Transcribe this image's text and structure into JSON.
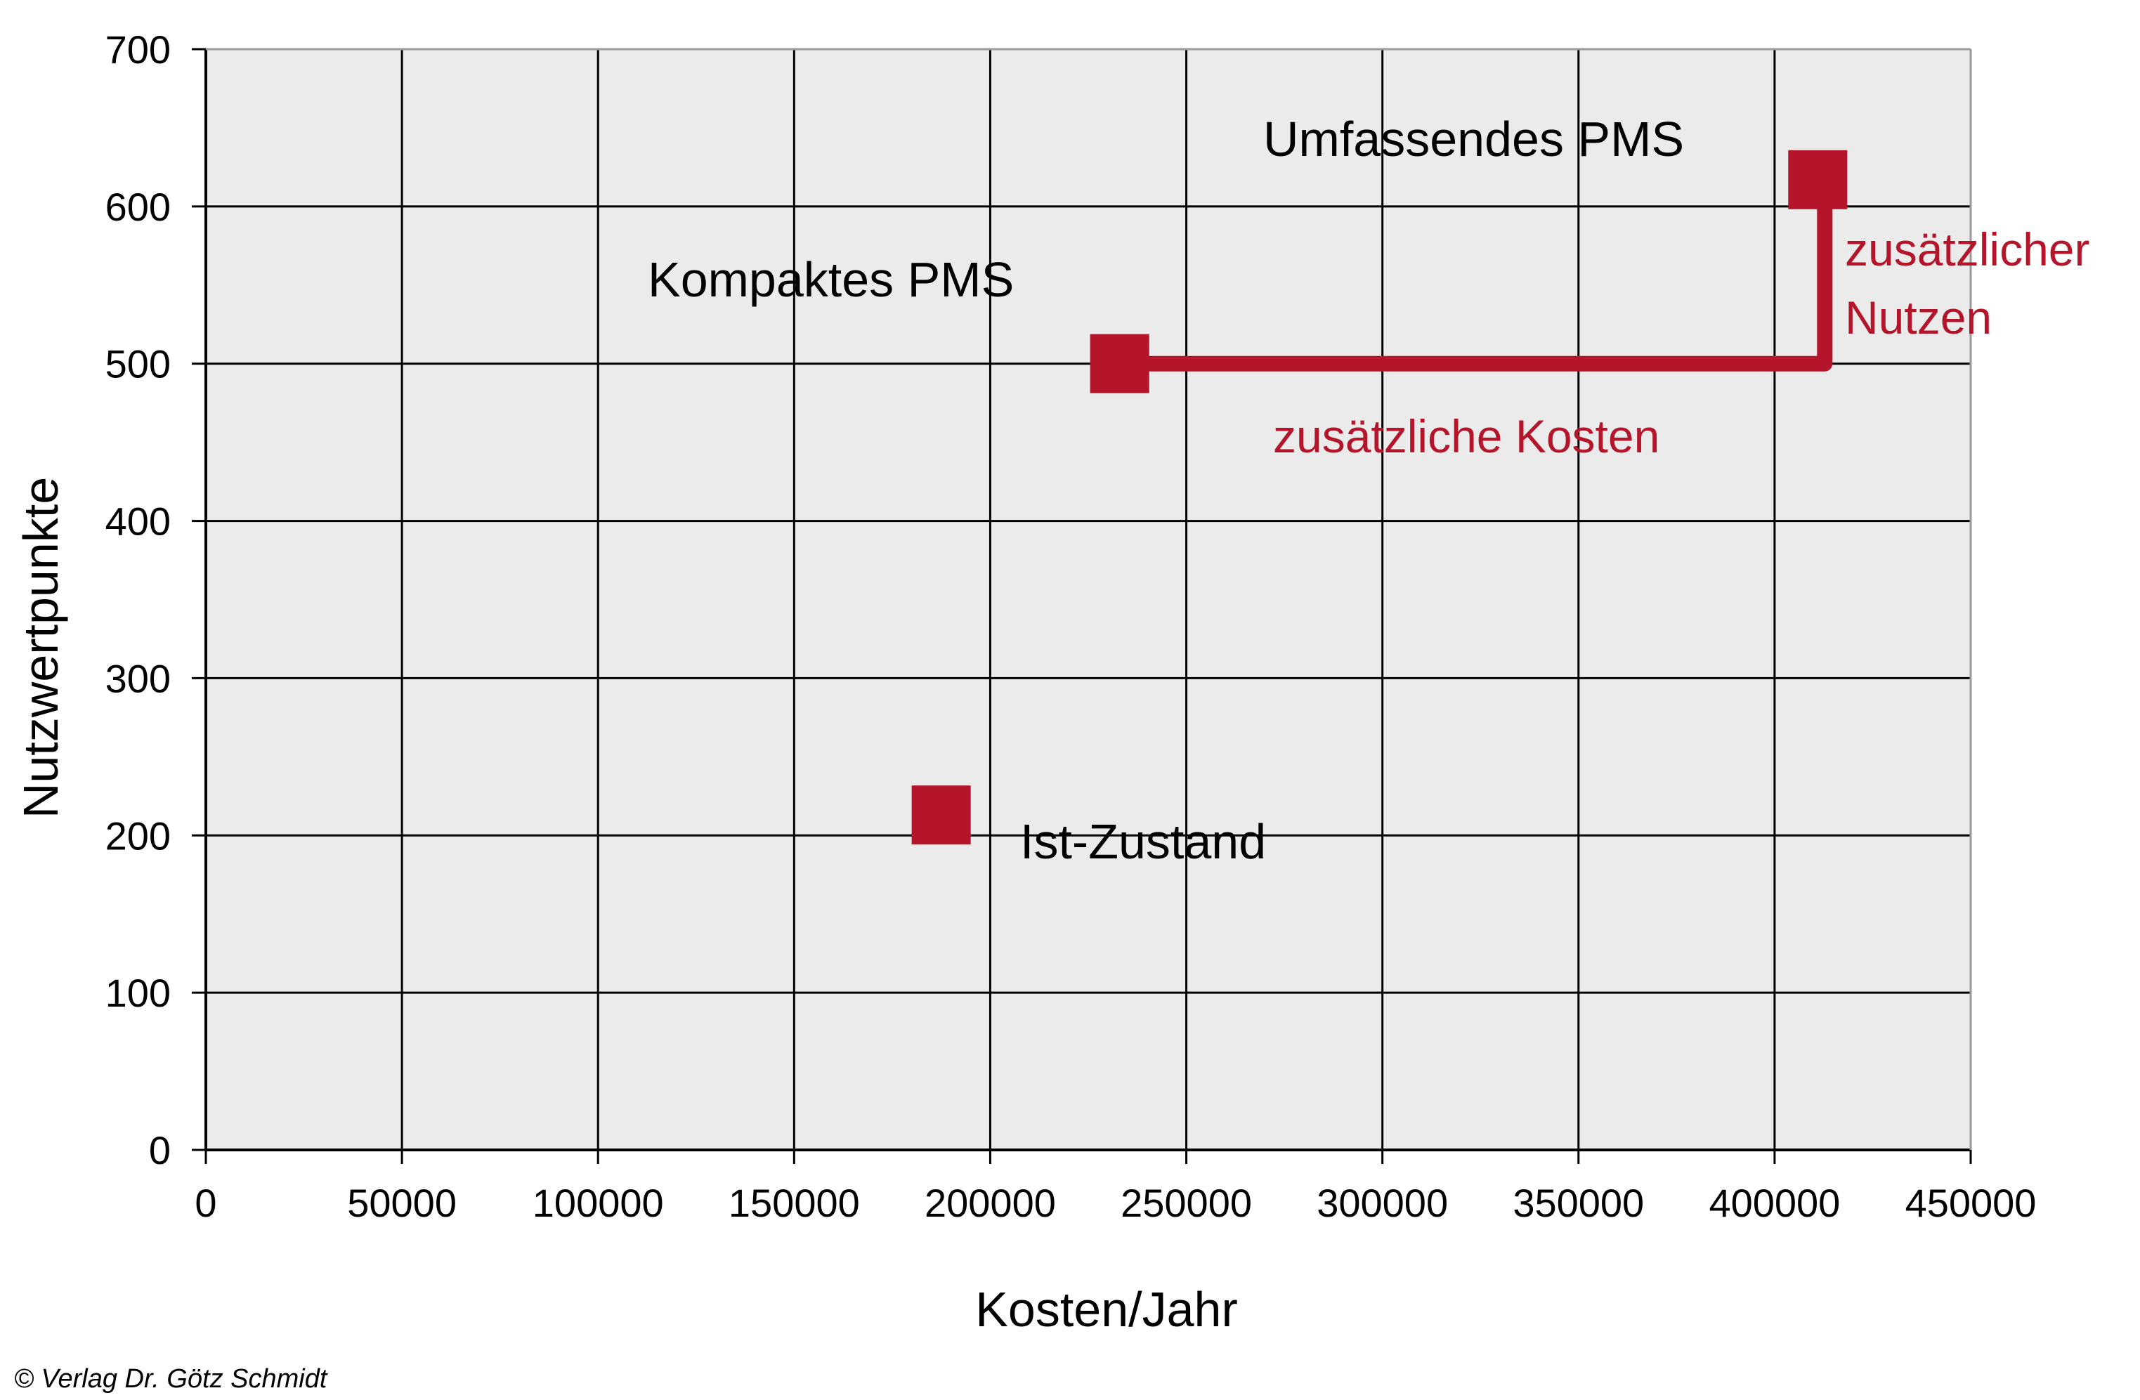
{
  "colors": {
    "plot_background": "#ebebeb",
    "grid": "#000000",
    "accent": "#b5152b"
  },
  "chart_data": {
    "type": "scatter",
    "xlabel": "Kosten/Jahr",
    "ylabel": "Nutzwertpunkte",
    "xlim": [
      0,
      450000
    ],
    "ylim": [
      0,
      700
    ],
    "x_ticks": [
      "0",
      "50000",
      "100000",
      "150000",
      "200000",
      "250000",
      "300000",
      "350000",
      "400000",
      "450000"
    ],
    "y_ticks": [
      "0",
      "100",
      "200",
      "300",
      "400",
      "500",
      "600",
      "700"
    ],
    "grid": true,
    "points": [
      {
        "label": "Ist-Zustand",
        "x": 187500,
        "y": 213
      },
      {
        "label": "Kompaktes PMS",
        "x": 233000,
        "y": 500
      },
      {
        "label": "Umfassendes PMS",
        "x": 411000,
        "y": 617
      }
    ],
    "annotations": {
      "cost_difference": "zusätzliche Kosten",
      "benefit_difference_line1": "zusätzlicher",
      "benefit_difference_line2": "Nutzen"
    }
  },
  "copyright": "© Verlag Dr. Götz Schmidt"
}
